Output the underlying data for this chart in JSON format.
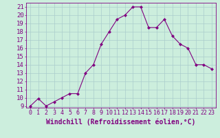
{
  "x": [
    0,
    1,
    2,
    3,
    4,
    5,
    6,
    7,
    8,
    9,
    10,
    11,
    12,
    13,
    14,
    15,
    16,
    17,
    18,
    19,
    20,
    21,
    22,
    23
  ],
  "y": [
    9,
    9.9,
    9,
    9.5,
    10,
    10.5,
    10.5,
    13,
    14,
    16.5,
    18,
    19.5,
    20,
    21,
    21,
    18.5,
    18.5,
    19.5,
    17.5,
    16.5,
    16,
    14,
    14,
    13.5
  ],
  "line_color": "#800080",
  "marker": "D",
  "marker_size": 2.0,
  "bg_color": "#cceedd",
  "grid_color": "#aacccc",
  "xlabel": "Windchill (Refroidissement éolien,°C)",
  "xlim_min": -0.5,
  "xlim_max": 23.5,
  "ylim_min": 8.8,
  "ylim_max": 21.5,
  "yticks": [
    9,
    10,
    11,
    12,
    13,
    14,
    15,
    16,
    17,
    18,
    19,
    20,
    21
  ],
  "ytick_labels": [
    "9",
    "10",
    "11",
    "12",
    "13",
    "14",
    "15",
    "16",
    "17",
    "18",
    "19",
    "20",
    "21"
  ],
  "xtick_positions": [
    0,
    1,
    2,
    3,
    4,
    5,
    6,
    7,
    8,
    9,
    10,
    11,
    12,
    13,
    14,
    15,
    16,
    17,
    18,
    19,
    20,
    21,
    22,
    23
  ],
  "xtick_labels": [
    "0",
    "1",
    "2",
    "3",
    "4",
    "5",
    "6",
    "7",
    "8",
    "9",
    "10",
    "11",
    "12",
    "13",
    "14",
    "15",
    "16",
    "17",
    "18",
    "19",
    "20",
    "21",
    "22",
    "23"
  ],
  "tick_color": "#800080",
  "label_color": "#800080",
  "spine_color": "#800080",
  "tick_fontsize": 6.5,
  "xlabel_fontsize": 7.0
}
